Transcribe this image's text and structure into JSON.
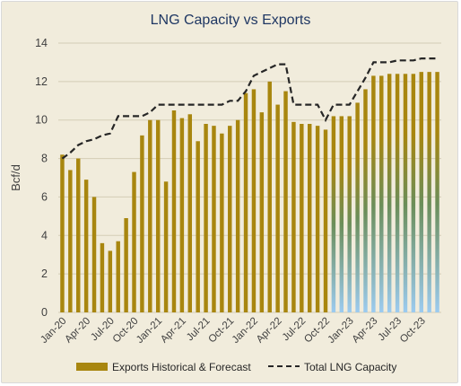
{
  "chart_data": {
    "type": "bar",
    "title": "LNG Capacity vs Exports",
    "ylabel": "Bcf/d",
    "xlabel": "",
    "ylim": [
      0,
      14
    ],
    "yticks": [
      "0",
      "2",
      "4",
      "6",
      "8",
      "10",
      "12",
      "14"
    ],
    "grid": true,
    "legend_position": "bottom",
    "categories": [
      "Jan-20",
      "Feb-20",
      "Mar-20",
      "Apr-20",
      "May-20",
      "Jun-20",
      "Jul-20",
      "Aug-20",
      "Sep-20",
      "Oct-20",
      "Nov-20",
      "Dec-20",
      "Jan-21",
      "Feb-21",
      "Mar-21",
      "Apr-21",
      "May-21",
      "Jun-21",
      "Jul-21",
      "Aug-21",
      "Sep-21",
      "Oct-21",
      "Nov-21",
      "Dec-21",
      "Jan-22",
      "Feb-22",
      "Mar-22",
      "Apr-22",
      "May-22",
      "Jun-22",
      "Jul-22",
      "Aug-22",
      "Sep-22",
      "Oct-22",
      "Nov-22",
      "Dec-22",
      "Jan-23",
      "Feb-23",
      "Mar-23",
      "Apr-23",
      "May-23",
      "Jun-23",
      "Jul-23",
      "Aug-23",
      "Sep-23",
      "Oct-23",
      "Nov-23",
      "Dec-23"
    ],
    "x_tick_labels": [
      "Jan-20",
      "Apr-20",
      "Jul-20",
      "Oct-20",
      "Jan-21",
      "Apr-21",
      "Jul-21",
      "Oct-21",
      "Jan-22",
      "Apr-22",
      "Jul-22",
      "Oct-22",
      "Jan-23",
      "Apr-23",
      "Jul-23",
      "Oct-23"
    ],
    "forecast_start": "Nov-22",
    "series": [
      {
        "name": "Exports Historical & Forecast",
        "kind": "bar",
        "color": "#a8860f",
        "forecast_gradient": [
          "#6b8e3a",
          "#9ccbf0"
        ],
        "values": [
          8.2,
          7.4,
          8.0,
          6.9,
          6.0,
          3.6,
          3.2,
          3.7,
          4.9,
          7.3,
          9.2,
          10.0,
          10.0,
          6.8,
          10.5,
          10.1,
          10.3,
          8.9,
          9.8,
          9.7,
          9.3,
          9.7,
          10.0,
          11.4,
          11.6,
          10.4,
          12.0,
          10.8,
          11.5,
          9.9,
          9.8,
          9.8,
          9.7,
          9.5,
          10.2,
          10.2,
          10.2,
          10.9,
          11.6,
          12.3,
          12.3,
          12.4,
          12.4,
          12.4,
          12.4,
          12.5,
          12.5,
          12.5
        ]
      },
      {
        "name": "Total LNG Capacity",
        "kind": "line",
        "style": "dashed",
        "color": "#262626",
        "values": [
          8.0,
          8.3,
          8.7,
          8.9,
          9.0,
          9.2,
          9.3,
          10.2,
          10.2,
          10.2,
          10.2,
          10.4,
          10.8,
          10.8,
          10.8,
          10.8,
          10.8,
          10.8,
          10.8,
          10.8,
          10.8,
          11.0,
          11.0,
          11.5,
          12.3,
          12.5,
          12.7,
          12.9,
          12.9,
          10.8,
          10.8,
          10.8,
          10.8,
          10.0,
          10.8,
          10.8,
          10.8,
          11.5,
          12.2,
          13.0,
          13.0,
          13.0,
          13.1,
          13.1,
          13.1,
          13.2,
          13.2,
          13.2
        ]
      }
    ]
  }
}
